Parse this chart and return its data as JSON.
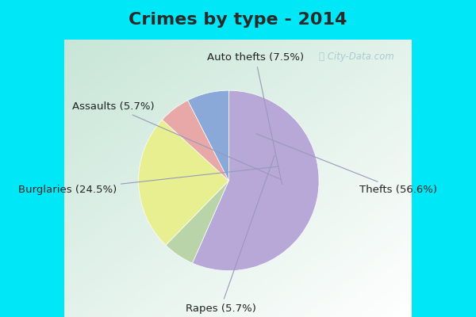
{
  "title": "Crimes by type - 2014",
  "title_fontsize": 16,
  "title_color": "#2a2a2a",
  "title_bg": "#00e8f8",
  "main_bg_top_left": "#c8e8d8",
  "main_bg_bottom_right": "#e8f8f0",
  "labels": [
    "Thefts",
    "Rapes",
    "Burglaries",
    "Assaults",
    "Auto thefts"
  ],
  "values": [
    56.6,
    5.7,
    24.5,
    5.7,
    7.5
  ],
  "colors": [
    "#b8a8d8",
    "#b8d4a8",
    "#e8ef90",
    "#e8a8a8",
    "#8aa8d8"
  ],
  "label_texts": [
    "Thefts (56.6%)",
    "Rapes (5.7%)",
    "Burglaries (24.5%)",
    "Assaults (5.7%)",
    "Auto thefts (7.5%)"
  ],
  "startangle": 90,
  "label_fontsize": 9.5,
  "watermark": "City-Data.com",
  "watermark_color": "#aaccd0"
}
